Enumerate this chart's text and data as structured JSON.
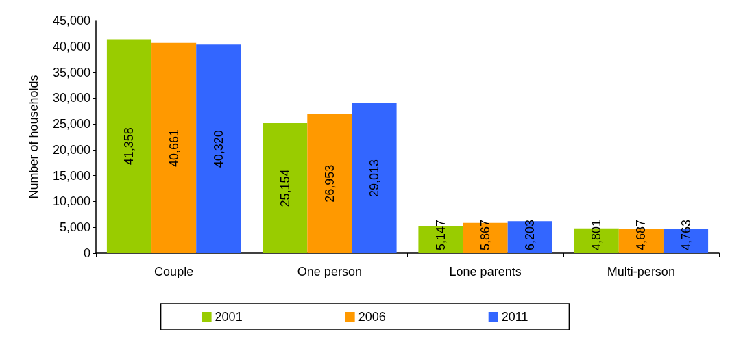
{
  "chart_data": {
    "type": "bar",
    "ylabel": "Number of households",
    "categories": [
      "Couple",
      "One person",
      "Lone parents",
      "Multi-person"
    ],
    "series": [
      {
        "name": "2001",
        "color": "#99cc00",
        "values": [
          41358,
          25154,
          5147,
          4801
        ],
        "value_labels": [
          "41,358",
          "25,154",
          "5,147",
          "4,801"
        ]
      },
      {
        "name": "2006",
        "color": "#ff9900",
        "values": [
          40661,
          26953,
          5867,
          4687
        ],
        "value_labels": [
          "40,661",
          "26,953",
          "5,867",
          "4,687"
        ]
      },
      {
        "name": "2011",
        "color": "#3366ff",
        "values": [
          40320,
          29013,
          6203,
          4763
        ],
        "value_labels": [
          "40,320",
          "29,013",
          "6,203",
          "4,763"
        ]
      }
    ],
    "ylim": [
      0,
      45000
    ],
    "yticks": [
      {
        "value": 0,
        "label": "0"
      },
      {
        "value": 5000,
        "label": "5,000"
      },
      {
        "value": 10000,
        "label": "10,000"
      },
      {
        "value": 15000,
        "label": "15,000"
      },
      {
        "value": 20000,
        "label": "20,000"
      },
      {
        "value": 25000,
        "label": "25,000"
      },
      {
        "value": 30000,
        "label": "30,000"
      },
      {
        "value": 35000,
        "label": "35,000"
      },
      {
        "value": 40000,
        "label": "40,000"
      },
      {
        "value": 45000,
        "label": "45,000"
      }
    ],
    "grid": false,
    "legend": "bottom"
  }
}
